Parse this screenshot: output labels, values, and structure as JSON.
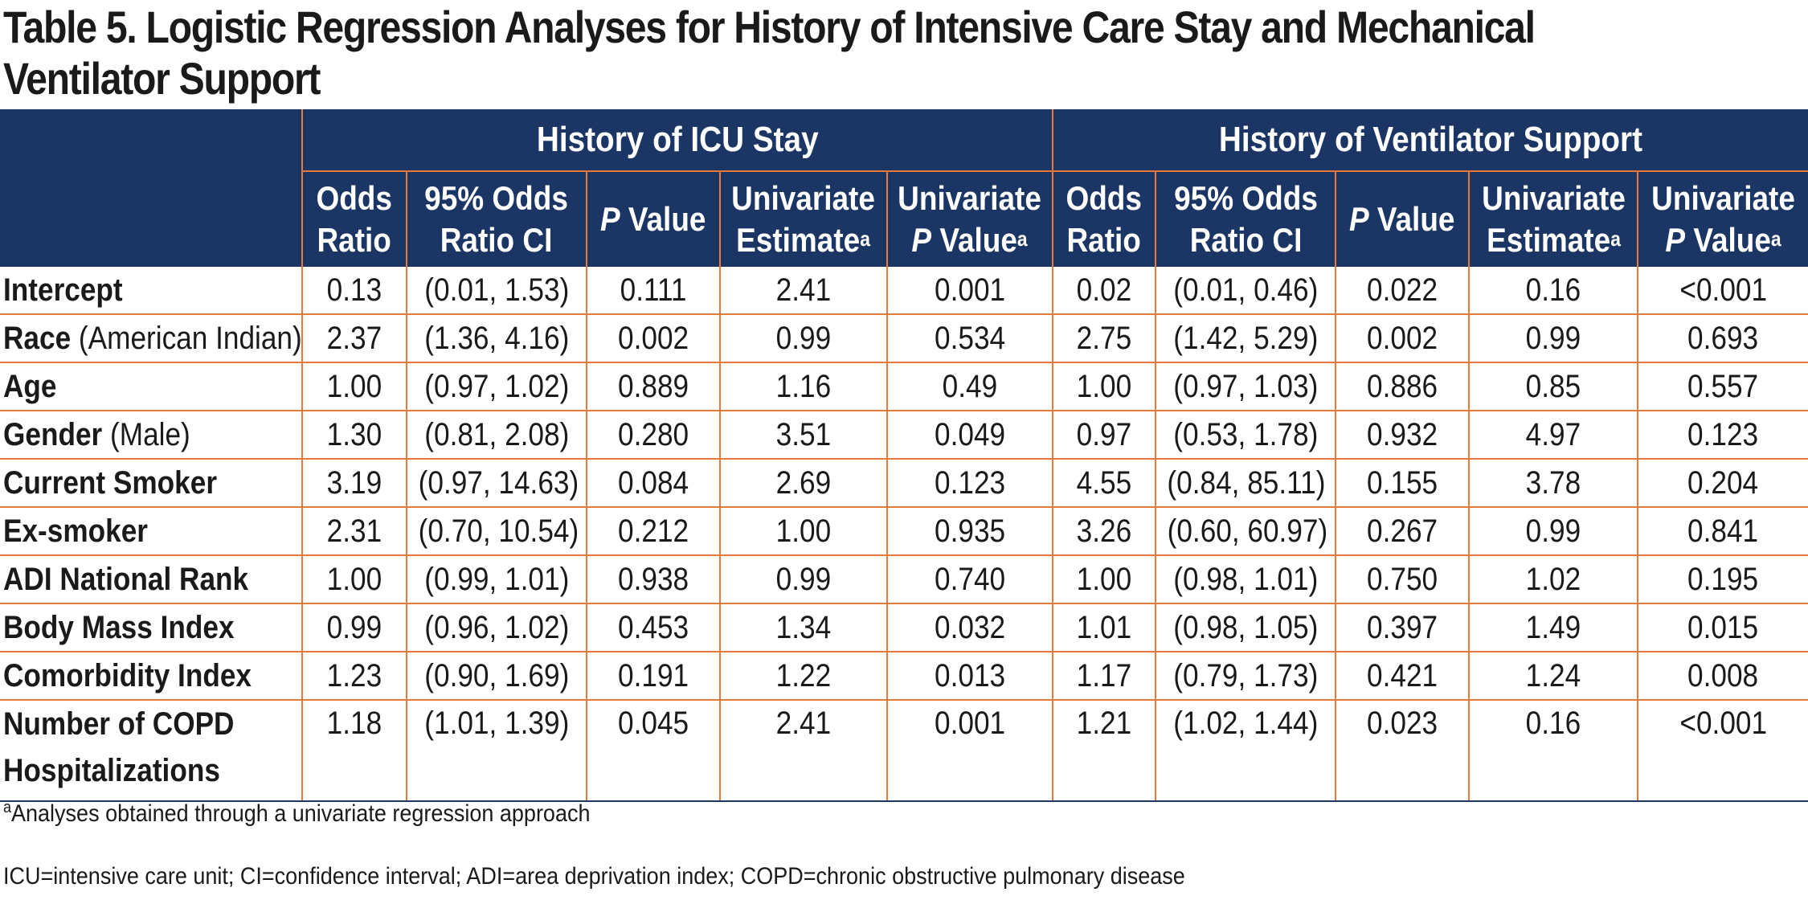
{
  "title": "Table 5. Logistic Regression Analyses for History of Intensive Care Stay and Mechanical Ventilator Support",
  "groups": {
    "icu": "History of  ICU Stay",
    "vent": "History of Ventilator Support"
  },
  "subheaders": {
    "odds_ratio_1": "Odds",
    "odds_ratio_2": "Ratio",
    "ci_1": "95% Odds",
    "ci_2": "Ratio CI",
    "p_italic": "P",
    "p_rest": " Value",
    "uni_est_1": "Univariate",
    "uni_est_2": "Estimate",
    "uni_p_1": "Univariate",
    "uni_p_italic": "P",
    "uni_p_rest": " Value",
    "footnote_mark": "a"
  },
  "rows": [
    {
      "label_bold": "Intercept",
      "label_rest": "",
      "icu": [
        "0.13",
        "(0.01, 1.53)",
        "0.111",
        "2.41",
        "0.001"
      ],
      "vent": [
        "0.02",
        "(0.01, 0.46)",
        "0.022",
        "0.16",
        "<0.001"
      ]
    },
    {
      "label_bold": "Race",
      "label_rest": " (American Indian)",
      "icu": [
        "2.37",
        "(1.36, 4.16)",
        "0.002",
        "0.99",
        "0.534"
      ],
      "vent": [
        "2.75",
        "(1.42, 5.29)",
        "0.002",
        "0.99",
        "0.693"
      ]
    },
    {
      "label_bold": "Age",
      "label_rest": "",
      "icu": [
        "1.00",
        "(0.97, 1.02)",
        "0.889",
        "1.16",
        "0.49"
      ],
      "vent": [
        "1.00",
        "(0.97, 1.03)",
        "0.886",
        "0.85",
        "0.557"
      ]
    },
    {
      "label_bold": "Gender",
      "label_rest": " (Male)",
      "icu": [
        "1.30",
        "(0.81, 2.08)",
        "0.280",
        "3.51",
        "0.049"
      ],
      "vent": [
        "0.97",
        "(0.53, 1.78)",
        "0.932",
        "4.97",
        "0.123"
      ]
    },
    {
      "label_bold": "Current Smoker",
      "label_rest": "",
      "icu": [
        "3.19",
        "(0.97, 14.63)",
        "0.084",
        "2.69",
        "0.123"
      ],
      "vent": [
        "4.55",
        "(0.84, 85.11)",
        "0.155",
        "3.78",
        "0.204"
      ]
    },
    {
      "label_bold": "Ex-smoker",
      "label_rest": "",
      "icu": [
        "2.31",
        "(0.70, 10.54)",
        "0.212",
        "1.00",
        "0.935"
      ],
      "vent": [
        "3.26",
        "(0.60, 60.97)",
        "0.267",
        "0.99",
        "0.841"
      ]
    },
    {
      "label_bold": "ADI National Rank",
      "label_rest": "",
      "icu": [
        "1.00",
        "(0.99, 1.01)",
        "0.938",
        "0.99",
        "0.740"
      ],
      "vent": [
        "1.00",
        "(0.98, 1.01)",
        "0.750",
        "1.02",
        "0.195"
      ]
    },
    {
      "label_bold": "Body Mass Index",
      "label_rest": "",
      "icu": [
        "0.99",
        "(0.96, 1.02)",
        "0.453",
        "1.34",
        "0.032"
      ],
      "vent": [
        "1.01",
        "(0.98, 1.05)",
        "0.397",
        "1.49",
        "0.015"
      ]
    },
    {
      "label_bold": "Comorbidity Index",
      "label_rest": "",
      "icu": [
        "1.23",
        "(0.90, 1.69)",
        "0.191",
        "1.22",
        "0.013"
      ],
      "vent": [
        "1.17",
        "(0.79, 1.73)",
        "0.421",
        "1.24",
        "0.008"
      ]
    },
    {
      "label_bold": "Number of COPD Hospitalizations",
      "label_rest": "",
      "icu": [
        "1.18",
        "(1.01, 1.39)",
        "0.045",
        "2.41",
        "0.001"
      ],
      "vent": [
        "1.21",
        "(1.02, 1.44)",
        "0.023",
        "0.16",
        "<0.001"
      ]
    }
  ],
  "footnotes": {
    "mark": "a",
    "note_a": "Analyses obtained through a univariate regression approach",
    "abbreviations": "ICU=intensive care unit; CI=confidence interval; ADI=area deprivation index; COPD=chronic obstructive pulmonary disease"
  },
  "colors": {
    "header_bg": "#1b3664",
    "rule": "#e8793a",
    "text": "#1a1a1a"
  }
}
